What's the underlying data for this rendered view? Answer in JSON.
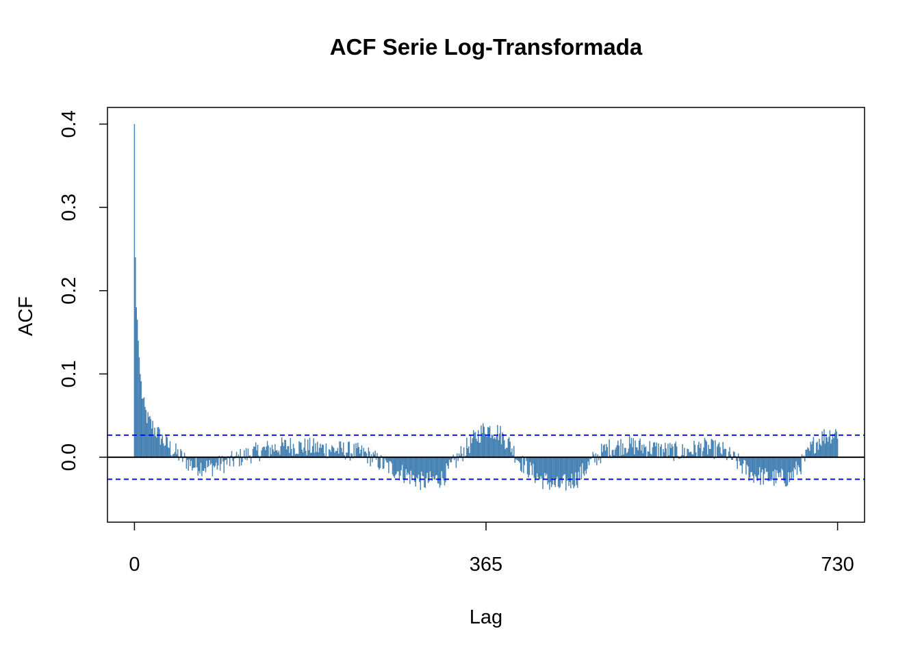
{
  "chart_data": {
    "type": "bar",
    "title": "ACF Serie Log-Transformada",
    "xlabel": "Lag",
    "ylabel": "ACF",
    "xlim": [
      -28,
      758
    ],
    "ylim": [
      -0.078,
      0.42
    ],
    "x_ticks": [
      {
        "value": 0,
        "label": "0"
      },
      {
        "value": 365,
        "label": "365"
      },
      {
        "value": 730,
        "label": "730"
      }
    ],
    "y_ticks": [
      {
        "value": 0.0,
        "label": "0.0"
      },
      {
        "value": 0.1,
        "label": "0.1"
      },
      {
        "value": 0.2,
        "label": "0.2"
      },
      {
        "value": 0.3,
        "label": "0.3"
      },
      {
        "value": 0.4,
        "label": "0.4"
      }
    ],
    "confidence_bound": 0.0265,
    "bar_color": "#4682B4",
    "bound_color": "#0000FF",
    "zero_line_color": "#000000",
    "lags_range": [
      0,
      730
    ],
    "acf_profile": [
      {
        "lag": 0,
        "acf": 0.4
      },
      {
        "lag": 1,
        "acf": 0.24
      },
      {
        "lag": 2,
        "acf": 0.18
      },
      {
        "lag": 3,
        "acf": 0.165
      },
      {
        "lag": 4,
        "acf": 0.14
      },
      {
        "lag": 5,
        "acf": 0.12
      },
      {
        "lag": 6,
        "acf": 0.1
      },
      {
        "lag": 8,
        "acf": 0.075
      },
      {
        "lag": 10,
        "acf": 0.06
      },
      {
        "lag": 14,
        "acf": 0.045
      },
      {
        "lag": 20,
        "acf": 0.035
      },
      {
        "lag": 30,
        "acf": 0.02
      },
      {
        "lag": 40,
        "acf": 0.008
      },
      {
        "lag": 60,
        "acf": -0.01
      },
      {
        "lag": 80,
        "acf": -0.012
      },
      {
        "lag": 100,
        "acf": -0.005
      },
      {
        "lag": 120,
        "acf": 0.004
      },
      {
        "lag": 140,
        "acf": 0.01
      },
      {
        "lag": 160,
        "acf": 0.014
      },
      {
        "lag": 180,
        "acf": 0.012
      },
      {
        "lag": 200,
        "acf": 0.01
      },
      {
        "lag": 220,
        "acf": 0.008
      },
      {
        "lag": 240,
        "acf": 0.004
      },
      {
        "lag": 260,
        "acf": -0.01
      },
      {
        "lag": 280,
        "acf": -0.02
      },
      {
        "lag": 300,
        "acf": -0.03
      },
      {
        "lag": 320,
        "acf": -0.025
      },
      {
        "lag": 340,
        "acf": 0.005
      },
      {
        "lag": 355,
        "acf": 0.025
      },
      {
        "lag": 365,
        "acf": 0.035
      },
      {
        "lag": 378,
        "acf": 0.03
      },
      {
        "lag": 390,
        "acf": 0.015
      },
      {
        "lag": 400,
        "acf": -0.005
      },
      {
        "lag": 420,
        "acf": -0.025
      },
      {
        "lag": 440,
        "acf": -0.035
      },
      {
        "lag": 460,
        "acf": -0.025
      },
      {
        "lag": 475,
        "acf": -0.005
      },
      {
        "lag": 490,
        "acf": 0.01
      },
      {
        "lag": 510,
        "acf": 0.015
      },
      {
        "lag": 530,
        "acf": 0.012
      },
      {
        "lag": 550,
        "acf": 0.008
      },
      {
        "lag": 570,
        "acf": 0.006
      },
      {
        "lag": 590,
        "acf": 0.012
      },
      {
        "lag": 610,
        "acf": 0.008
      },
      {
        "lag": 625,
        "acf": -0.005
      },
      {
        "lag": 640,
        "acf": -0.02
      },
      {
        "lag": 660,
        "acf": -0.025
      },
      {
        "lag": 680,
        "acf": -0.025
      },
      {
        "lag": 695,
        "acf": -0.005
      },
      {
        "lag": 705,
        "acf": 0.015
      },
      {
        "lag": 715,
        "acf": 0.025
      },
      {
        "lag": 730,
        "acf": 0.03
      }
    ]
  }
}
